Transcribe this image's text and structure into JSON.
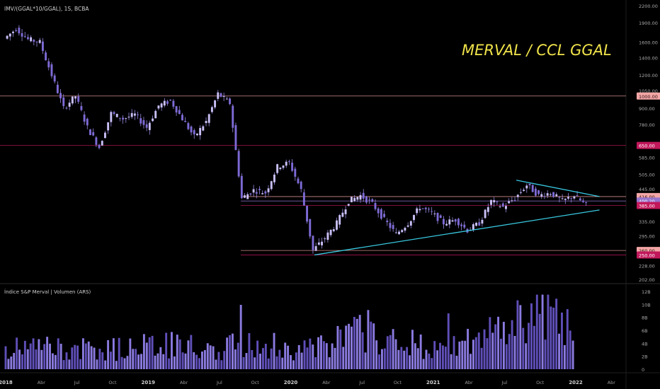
{
  "chart_data": [
    {
      "type": "candlestick",
      "symbol_label": "IMV/(GGAL*10/GGAL), 1S, BCBA",
      "title": "MERVAL / CCL GGAL",
      "y_axis_ticks": [
        "2200.00",
        "1900.00",
        "1600.00",
        "1400.00",
        "1200.00",
        "1050.00",
        "900.00",
        "780.00",
        "650.00",
        "585.00",
        "505.00",
        "445.00",
        "335.00",
        "295.00",
        "250.00",
        "228.00",
        "202.00"
      ],
      "y_axis_values": [
        2200,
        1900,
        1600,
        1400,
        1200,
        1050,
        900,
        780,
        650,
        585,
        505,
        445,
        335,
        295,
        250,
        228,
        202
      ],
      "price_markers": [
        {
          "label": "1000.00",
          "value": 1000,
          "color": "#f4a6a6"
        },
        {
          "label": "650.00",
          "value": 650,
          "color": "#c2185b"
        },
        {
          "label": "416.00",
          "value": 416,
          "color": "#f4a6a6"
        },
        {
          "label": "400.20",
          "value": 400.2,
          "color": "#9575cd"
        },
        {
          "label": "385.00",
          "value": 385,
          "color": "#c2185b"
        },
        {
          "label": "260.00",
          "value": 260,
          "color": "#f4a6a6"
        },
        {
          "label": "250.00",
          "value": 250,
          "color": "#c2185b"
        }
      ],
      "horizontal_levels": [
        1000,
        650,
        416,
        400.2,
        385,
        260,
        250
      ],
      "trendlines": [
        {
          "from": {
            "x": "2020-03",
            "y": 250
          },
          "to": {
            "x": "2022-03",
            "y": 370
          }
        },
        {
          "from": {
            "x": "2021-08",
            "y": 480
          },
          "to": {
            "x": "2022-03",
            "y": 416
          }
        }
      ],
      "x_axis_ticks": [
        "2018",
        "Abr",
        "Jul",
        "Oct",
        "2019",
        "Abr",
        "Jul",
        "Oct",
        "2020",
        "Abr",
        "Jul",
        "Oct",
        "2021",
        "Abr",
        "Jul",
        "Oct",
        "2022",
        "Abr"
      ],
      "price_path": [
        {
          "x": "2018-01",
          "y": 1650
        },
        {
          "x": "2018-02",
          "y": 1800
        },
        {
          "x": "2018-03",
          "y": 1640
        },
        {
          "x": "2018-04",
          "y": 1600
        },
        {
          "x": "2018-05",
          "y": 1200
        },
        {
          "x": "2018-06",
          "y": 900
        },
        {
          "x": "2018-07",
          "y": 1000
        },
        {
          "x": "2018-08",
          "y": 760
        },
        {
          "x": "2018-09",
          "y": 640
        },
        {
          "x": "2018-10",
          "y": 860
        },
        {
          "x": "2018-11",
          "y": 820
        },
        {
          "x": "2018-12",
          "y": 850
        },
        {
          "x": "2019-01",
          "y": 760
        },
        {
          "x": "2019-02",
          "y": 920
        },
        {
          "x": "2019-03",
          "y": 960
        },
        {
          "x": "2019-04",
          "y": 820
        },
        {
          "x": "2019-05",
          "y": 700
        },
        {
          "x": "2019-06",
          "y": 800
        },
        {
          "x": "2019-07",
          "y": 1020
        },
        {
          "x": "2019-08",
          "y": 940
        },
        {
          "x": "2019-09",
          "y": 410
        },
        {
          "x": "2019-10",
          "y": 440
        },
        {
          "x": "2019-11",
          "y": 430
        },
        {
          "x": "2019-12",
          "y": 540
        },
        {
          "x": "2020-01",
          "y": 560
        },
        {
          "x": "2020-02",
          "y": 440
        },
        {
          "x": "2020-03",
          "y": 260
        },
        {
          "x": "2020-04",
          "y": 290
        },
        {
          "x": "2020-05",
          "y": 330
        },
        {
          "x": "2020-06",
          "y": 400
        },
        {
          "x": "2020-07",
          "y": 420
        },
        {
          "x": "2020-08",
          "y": 390
        },
        {
          "x": "2020-09",
          "y": 340
        },
        {
          "x": "2020-10",
          "y": 300
        },
        {
          "x": "2020-11",
          "y": 330
        },
        {
          "x": "2020-12",
          "y": 380
        },
        {
          "x": "2021-01",
          "y": 360
        },
        {
          "x": "2021-02",
          "y": 330
        },
        {
          "x": "2021-03",
          "y": 340
        },
        {
          "x": "2021-04",
          "y": 310
        },
        {
          "x": "2021-05",
          "y": 330
        },
        {
          "x": "2021-06",
          "y": 400
        },
        {
          "x": "2021-07",
          "y": 380
        },
        {
          "x": "2021-08",
          "y": 410
        },
        {
          "x": "2021-09",
          "y": 460
        },
        {
          "x": "2021-10",
          "y": 420
        },
        {
          "x": "2021-11",
          "y": 430
        },
        {
          "x": "2021-12",
          "y": 400
        },
        {
          "x": "2022-01",
          "y": 420
        },
        {
          "x": "2022-02",
          "y": 385
        }
      ],
      "grid": false,
      "candle_color": "#9a8ae0"
    },
    {
      "type": "bar",
      "title": "Índice S&P Merval | Volumen (ARS)",
      "y_axis_ticks": [
        "12B",
        "10B",
        "8B",
        "6B",
        "4B",
        "2B",
        "0"
      ],
      "y_axis_values": [
        12,
        10,
        8,
        6,
        4,
        2,
        0
      ],
      "x": [
        "2018-01",
        "2018-04",
        "2018-07",
        "2018-10",
        "2019-01",
        "2019-04",
        "2019-07",
        "2019-10",
        "2020-01",
        "2020-04",
        "2020-07",
        "2020-10",
        "2021-01",
        "2021-04",
        "2021-07",
        "2021-10",
        "2022-01"
      ],
      "values": [
        3,
        3.5,
        3,
        3,
        4,
        3.5,
        3,
        4.5,
        3,
        3.5,
        6,
        4.5,
        3.5,
        4,
        6.5,
        9.5,
        5
      ],
      "bar_color": "#6a5acd"
    }
  ]
}
